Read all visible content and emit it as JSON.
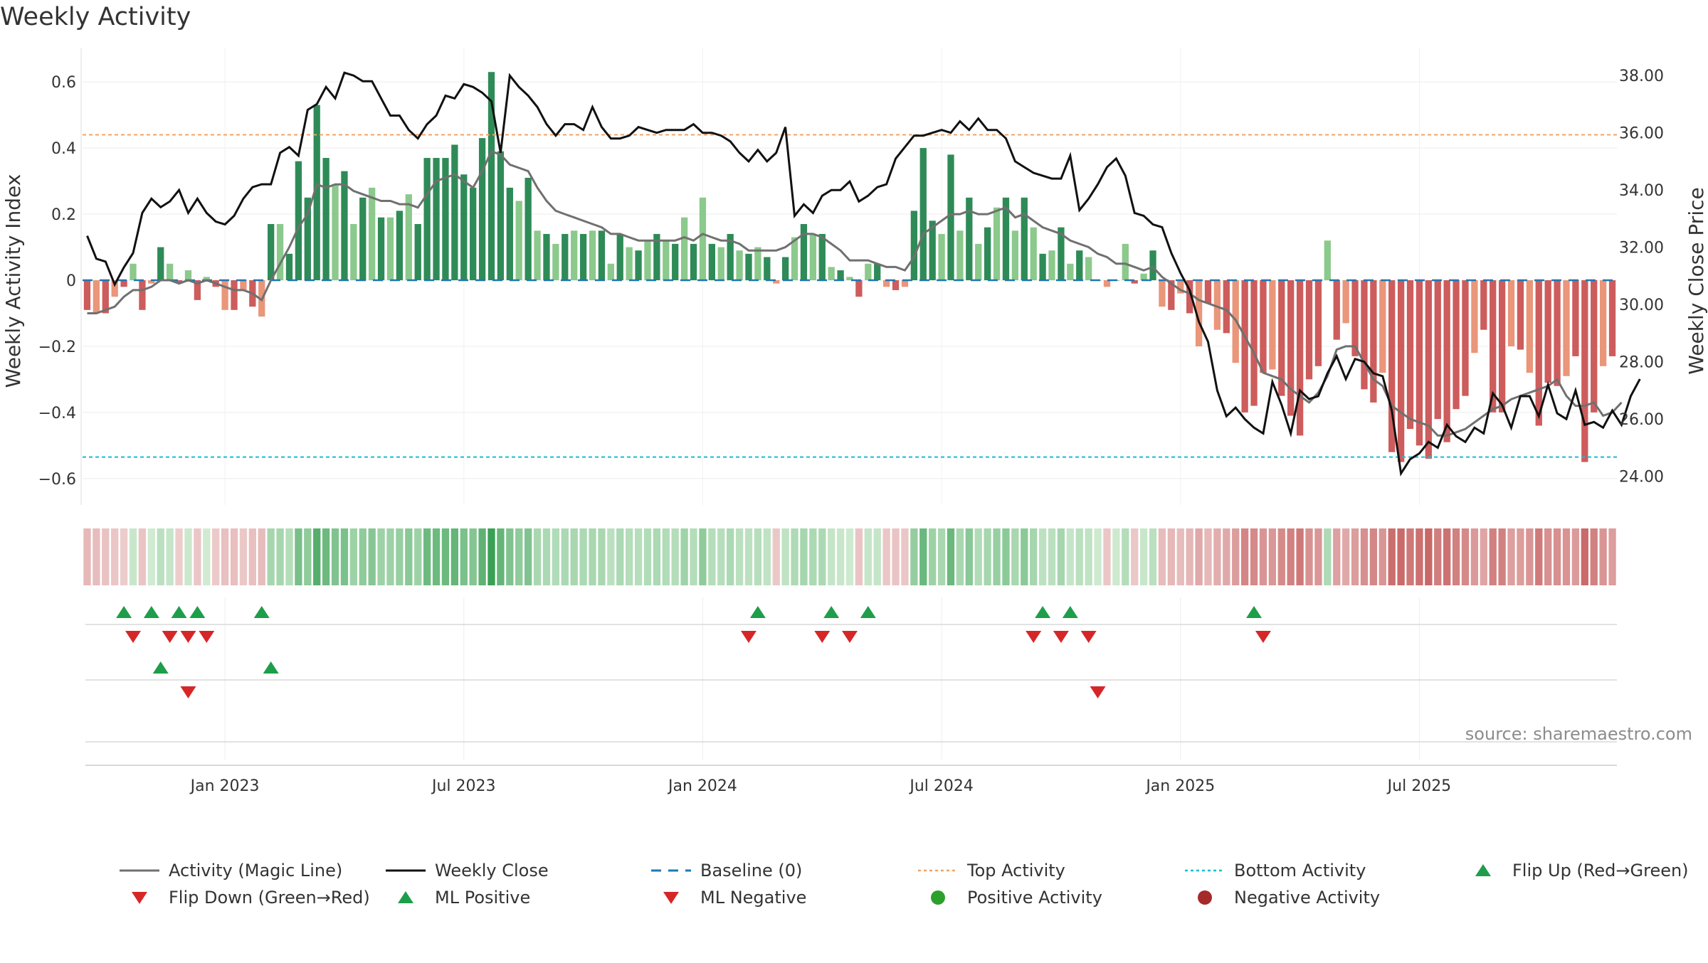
{
  "chart_data": {
    "type": "bar",
    "title": "Weekly Activity",
    "ylabel": "Weekly Activity Index",
    "y2label": "Weekly Close Price",
    "ylim": [
      -0.68,
      0.68
    ],
    "y2lim": [
      23.0,
      38.7
    ],
    "y_ticks": [
      {
        "v": 0.6,
        "label": "0.6"
      },
      {
        "v": 0.4,
        "label": "0.4"
      },
      {
        "v": 0.2,
        "label": "0.2"
      },
      {
        "v": 0,
        "label": "0"
      },
      {
        "v": -0.2,
        "label": "−0.2"
      },
      {
        "v": -0.4,
        "label": "−0.4"
      },
      {
        "v": -0.6,
        "label": "−0.6"
      }
    ],
    "y2_ticks": [
      {
        "v": 38,
        "label": "38.00"
      },
      {
        "v": 36,
        "label": "36.00"
      },
      {
        "v": 34,
        "label": "34.00"
      },
      {
        "v": 32,
        "label": "32.00"
      },
      {
        "v": 30,
        "label": "30.00"
      },
      {
        "v": 28,
        "label": "28.00"
      },
      {
        "v": 26,
        "label": "26.00"
      },
      {
        "v": 24,
        "label": "24.00"
      }
    ],
    "x_ticks": [
      {
        "w": 15,
        "label": "Jan 2023"
      },
      {
        "w": 41,
        "label": "Jul 2023"
      },
      {
        "w": 67,
        "label": "Jan 2024"
      },
      {
        "w": 93,
        "label": "Jul 2024"
      },
      {
        "w": 119,
        "label": "Jan 2025"
      },
      {
        "w": 145,
        "label": "Jul 2025"
      }
    ],
    "top_activity": 0.44,
    "bottom_activity": -0.535,
    "activity": [
      -0.09,
      -0.1,
      -0.1,
      -0.05,
      -0.02,
      0.05,
      -0.09,
      -0.01,
      0.1,
      0.05,
      -0.01,
      0.03,
      -0.06,
      0.01,
      -0.02,
      -0.09,
      -0.09,
      -0.03,
      -0.08,
      -0.11,
      0.17,
      0.17,
      0.08,
      0.36,
      0.25,
      0.53,
      0.37,
      0.29,
      0.33,
      0.17,
      0.25,
      0.28,
      0.19,
      0.19,
      0.21,
      0.26,
      0.17,
      0.37,
      0.37,
      0.37,
      0.41,
      0.32,
      0.28,
      0.43,
      0.63,
      0.39,
      0.28,
      0.24,
      0.31,
      0.15,
      0.14,
      0.11,
      0.14,
      0.15,
      0.14,
      0.15,
      0.15,
      0.05,
      0.14,
      0.1,
      0.09,
      0.12,
      0.14,
      0.12,
      0.11,
      0.19,
      0.11,
      0.25,
      0.11,
      0.1,
      0.14,
      0.09,
      0.08,
      0.1,
      0.07,
      -0.01,
      0.07,
      0.13,
      0.17,
      0.14,
      0.14,
      0.04,
      0.03,
      0.01,
      -0.05,
      0.05,
      0.05,
      -0.02,
      -0.03,
      -0.02,
      0.21,
      0.4,
      0.18,
      0.14,
      0.38,
      0.15,
      0.25,
      0.11,
      0.16,
      0.22,
      0.25,
      0.15,
      0.25,
      0.16,
      0.08,
      0.09,
      0.16,
      0.05,
      0.09,
      0.07,
      0,
      -0.02,
      0,
      0.11,
      -0.01,
      0.02,
      0.09,
      -0.08,
      -0.09,
      -0.04,
      -0.1,
      -0.2,
      -0.07,
      -0.15,
      -0.16,
      -0.25,
      -0.4,
      -0.38,
      -0.28,
      -0.27,
      -0.35,
      -0.41,
      -0.47,
      -0.3,
      -0.26,
      0.12,
      -0.18,
      -0.13,
      -0.23,
      -0.33,
      -0.37,
      -0.28,
      -0.52,
      -0.55,
      -0.45,
      -0.5,
      -0.54,
      -0.42,
      -0.49,
      -0.39,
      -0.35,
      -0.22,
      -0.15,
      -0.4,
      -0.4,
      -0.2,
      -0.21,
      -0.28,
      -0.44,
      -0.31,
      -0.32,
      -0.29,
      -0.23,
      -0.55,
      -0.4,
      -0.26,
      -0.23
    ],
    "magic_line": [
      -0.1,
      -0.1,
      -0.09,
      -0.08,
      -0.05,
      -0.03,
      -0.03,
      -0.02,
      0,
      0,
      -0.01,
      0,
      -0.01,
      0,
      -0.01,
      -0.02,
      -0.03,
      -0.03,
      -0.04,
      -0.06,
      0,
      0.05,
      0.1,
      0.16,
      0.2,
      0.29,
      0.28,
      0.29,
      0.29,
      0.27,
      0.26,
      0.25,
      0.24,
      0.24,
      0.23,
      0.23,
      0.22,
      0.26,
      0.3,
      0.31,
      0.32,
      0.3,
      0.28,
      0.33,
      0.39,
      0.38,
      0.35,
      0.34,
      0.33,
      0.28,
      0.24,
      0.21,
      0.2,
      0.19,
      0.18,
      0.17,
      0.16,
      0.14,
      0.14,
      0.13,
      0.12,
      0.12,
      0.12,
      0.12,
      0.12,
      0.13,
      0.12,
      0.14,
      0.13,
      0.12,
      0.12,
      0.11,
      0.09,
      0.09,
      0.09,
      0.09,
      0.1,
      0.12,
      0.14,
      0.14,
      0.13,
      0.11,
      0.09,
      0.06,
      0.06,
      0.06,
      0.05,
      0.04,
      0.04,
      0.03,
      0.07,
      0.14,
      0.16,
      0.18,
      0.2,
      0.2,
      0.21,
      0.2,
      0.2,
      0.21,
      0.22,
      0.19,
      0.2,
      0.18,
      0.16,
      0.15,
      0.14,
      0.12,
      0.11,
      0.1,
      0.08,
      0.07,
      0.05,
      0.05,
      0.04,
      0.03,
      0.04,
      0.01,
      -0.01,
      -0.03,
      -0.04,
      -0.06,
      -0.07,
      -0.08,
      -0.09,
      -0.12,
      -0.17,
      -0.22,
      -0.28,
      -0.29,
      -0.3,
      -0.33,
      -0.35,
      -0.37,
      -0.34,
      -0.29,
      -0.21,
      -0.2,
      -0.2,
      -0.25,
      -0.3,
      -0.32,
      -0.38,
      -0.4,
      -0.42,
      -0.43,
      -0.44,
      -0.47,
      -0.47,
      -0.46,
      -0.45,
      -0.43,
      -0.41,
      -0.39,
      -0.38,
      -0.36,
      -0.35,
      -0.34,
      -0.33,
      -0.32,
      -0.3,
      -0.35,
      -0.38,
      -0.38,
      -0.37,
      -0.41,
      -0.4,
      -0.37
    ],
    "weekly_close": [
      32.4,
      31.6,
      31.5,
      30.7,
      31.3,
      31.8,
      33.2,
      33.7,
      33.4,
      33.6,
      34.0,
      33.2,
      33.7,
      33.2,
      32.9,
      32.8,
      33.1,
      33.7,
      34.1,
      34.2,
      34.2,
      35.3,
      35.5,
      35.2,
      36.8,
      37.0,
      37.6,
      37.2,
      38.1,
      38.0,
      37.8,
      37.8,
      37.2,
      36.6,
      36.6,
      36.1,
      35.8,
      36.3,
      36.6,
      37.3,
      37.2,
      37.7,
      37.6,
      37.4,
      37.1,
      35.3,
      38.0,
      37.6,
      37.3,
      36.9,
      36.3,
      35.9,
      36.3,
      36.3,
      36.1,
      36.9,
      36.2,
      35.8,
      35.8,
      35.9,
      36.2,
      36.1,
      36.0,
      36.1,
      36.1,
      36.1,
      36.3,
      36.0,
      36.0,
      35.9,
      35.7,
      35.3,
      35.0,
      35.4,
      35.0,
      35.3,
      36.2,
      33.1,
      33.5,
      33.2,
      33.8,
      34.0,
      34.0,
      34.3,
      33.6,
      33.8,
      34.1,
      34.2,
      35.1,
      35.5,
      35.9,
      35.9,
      36.0,
      36.1,
      36.0,
      36.4,
      36.1,
      36.5,
      36.1,
      36.1,
      35.8,
      35.0,
      34.8,
      34.6,
      34.5,
      34.4,
      34.4,
      35.2,
      33.3,
      33.7,
      34.2,
      34.8,
      35.1,
      34.5,
      33.2,
      33.1,
      32.8,
      32.7,
      31.8,
      31.1,
      30.5,
      29.4,
      28.7,
      27.0,
      26.1,
      26.4,
      26.0,
      25.7,
      25.5,
      27.3,
      26.5,
      25.5,
      27.0,
      26.7,
      26.8,
      27.6,
      28.2,
      27.4,
      28.1,
      28.0,
      27.6,
      27.5,
      26.3,
      24.1,
      24.6,
      24.8,
      25.2,
      25.0,
      25.8,
      25.4,
      25.2,
      25.7,
      25.5,
      26.9,
      26.5,
      25.7,
      26.8,
      26.8,
      26.1,
      27.2,
      26.2,
      26.0,
      27.0,
      25.8,
      25.9,
      25.7,
      26.3,
      25.8,
      26.8,
      27.4
    ],
    "strip": [
      -0.12,
      -0.1,
      -0.07,
      -0.05,
      -0.02,
      0.05,
      -0.06,
      0.02,
      0.1,
      0.06,
      -0.02,
      0.04,
      -0.05,
      0.02,
      -0.03,
      -0.08,
      -0.09,
      -0.04,
      -0.08,
      -0.1,
      0.17,
      0.17,
      0.12,
      0.33,
      0.25,
      0.45,
      0.37,
      0.3,
      0.32,
      0.2,
      0.25,
      0.28,
      0.2,
      0.2,
      0.22,
      0.27,
      0.2,
      0.37,
      0.37,
      0.37,
      0.4,
      0.32,
      0.29,
      0.42,
      0.6,
      0.4,
      0.3,
      0.25,
      0.3,
      0.16,
      0.15,
      0.13,
      0.15,
      0.16,
      0.15,
      0.16,
      0.16,
      0.1,
      0.15,
      0.12,
      0.11,
      0.13,
      0.15,
      0.13,
      0.12,
      0.19,
      0.12,
      0.25,
      0.12,
      0.11,
      0.15,
      0.1,
      0.09,
      0.11,
      0.08,
      -0.04,
      0.08,
      0.14,
      0.17,
      0.15,
      0.15,
      0.06,
      0.05,
      0.03,
      -0.06,
      0.06,
      0.06,
      -0.05,
      -0.06,
      -0.05,
      0.23,
      0.38,
      0.2,
      0.16,
      0.38,
      0.16,
      0.27,
      0.13,
      0.17,
      0.22,
      0.26,
      0.16,
      0.26,
      0.17,
      0.09,
      0.1,
      0.17,
      0.06,
      0.1,
      0.08,
      0.03,
      -0.05,
      0.03,
      0.12,
      -0.04,
      0.05,
      0.1,
      -0.1,
      -0.12,
      -0.1,
      -0.13,
      -0.2,
      -0.12,
      -0.18,
      -0.2,
      -0.26,
      -0.38,
      -0.36,
      -0.3,
      -0.29,
      -0.35,
      -0.4,
      -0.45,
      -0.32,
      -0.29,
      0.14,
      -0.24,
      -0.2,
      -0.26,
      -0.33,
      -0.37,
      -0.3,
      -0.5,
      -0.52,
      -0.45,
      -0.49,
      -0.53,
      -0.42,
      -0.48,
      -0.4,
      -0.36,
      -0.28,
      -0.22,
      -0.4,
      -0.4,
      -0.25,
      -0.26,
      -0.3,
      -0.44,
      -0.32,
      -0.33,
      -0.31,
      -0.27,
      -0.52,
      -0.4,
      -0.3,
      -0.26
    ],
    "signal_rows": [
      {
        "up": [
          4,
          7,
          10,
          12,
          19
        ],
        "down": [
          5,
          9,
          11,
          13
        ]
      },
      {
        "up": [
          8,
          20
        ],
        "down": [
          11
        ]
      },
      {
        "up": [],
        "down": []
      }
    ],
    "row_signals": [
      {
        "up": [
          73,
          81,
          85,
          104,
          107,
          127
        ],
        "down": [
          72,
          80,
          83,
          103,
          106,
          109,
          128
        ]
      },
      {
        "up": [],
        "down": [
          110
        ]
      },
      {
        "up": [],
        "down": []
      }
    ],
    "source": "source: sharemaestro.com",
    "legend": [
      {
        "label": "Activity (Magic Line)",
        "kind": "line",
        "color": "#707070"
      },
      {
        "label": "Weekly Close",
        "kind": "line",
        "color": "#111111"
      },
      {
        "label": "Baseline (0)",
        "kind": "dash",
        "color": "#1f77b4"
      },
      {
        "label": "Top Activity",
        "kind": "dot",
        "color": "#f4a261"
      },
      {
        "label": "Bottom Activity",
        "kind": "dot",
        "color": "#17becf"
      },
      {
        "label": "Flip Up (Red→Green)",
        "kind": "up",
        "color": "#1e9e4a"
      },
      {
        "label": "Flip Down (Green→Red)",
        "kind": "down",
        "color": "#d62728"
      },
      {
        "label": "ML Positive",
        "kind": "up",
        "color": "#1e9e4a"
      },
      {
        "label": "ML Negative",
        "kind": "down",
        "color": "#d62728"
      },
      {
        "label": "Positive Activity",
        "kind": "circle",
        "color": "#2ca02c"
      },
      {
        "label": "Negative Activity",
        "kind": "circle",
        "color": "#a52a2a"
      }
    ],
    "colors": {
      "pos_dark": "#2e8b57",
      "pos_light": "#8cc98c",
      "neg_dark": "#cd5c5c",
      "neg_light": "#e9967a",
      "close": "#111111",
      "magic": "#707070"
    }
  }
}
